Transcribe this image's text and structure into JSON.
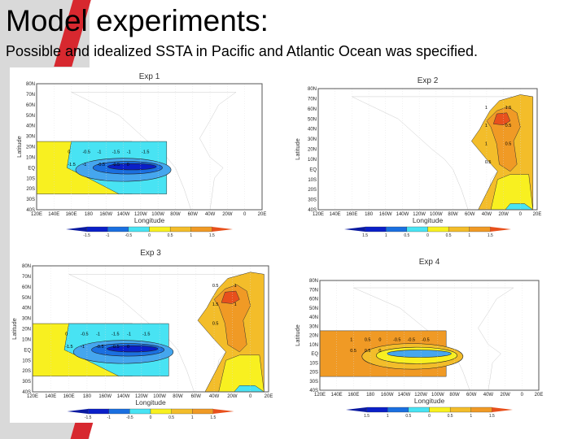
{
  "slide": {
    "title": "Model experiments:",
    "subtitle": "Possible and idealized SSTA in Pacific and Atlantic Ocean was specified."
  },
  "colors": {
    "accent_red": "#d7282f",
    "scale": [
      "#0a1fc8",
      "#1a6fe0",
      "#45a6ee",
      "#48e3f3",
      "#f8f020",
      "#f3bd2a",
      "#f09a25",
      "#e8501c"
    ]
  },
  "panels": [
    {
      "title": "Exp 1",
      "xlabel": "Longitude",
      "ylabel": "Latitude",
      "lon_ticks": [
        "120E",
        "140E",
        "160E",
        "180",
        "160W",
        "140W",
        "120W",
        "100W",
        "80W",
        "60W",
        "40W",
        "20W",
        "0",
        "20E"
      ],
      "lat_ticks": [
        "80N",
        "70N",
        "60N",
        "50N",
        "40N",
        "30N",
        "20N",
        "10N",
        "EQ",
        "10S",
        "20S",
        "30S",
        "40S"
      ],
      "colorbar_labels": [
        "-1.5",
        "-1",
        "-0.5",
        "0",
        "0.5",
        "1",
        "1.5"
      ],
      "contour_labels": [
        "0",
        "-0.5",
        "-1",
        "-1.5",
        "-1",
        "-1.5",
        "-1.5",
        "-1",
        "-0.5",
        "-0.5",
        "0"
      ],
      "regions": [
        "pacific-cold"
      ]
    },
    {
      "title": "Exp 2",
      "xlabel": "Longitude",
      "ylabel": "Latitude",
      "lon_ticks": [
        "120E",
        "140E",
        "160E",
        "180",
        "160W",
        "140W",
        "120W",
        "100W",
        "80W",
        "60W",
        "40W",
        "20W",
        "0",
        "20E"
      ],
      "lat_ticks": [
        "80N",
        "70N",
        "60N",
        "50N",
        "40N",
        "30N",
        "20N",
        "10N",
        "EQ",
        "10S",
        "20S",
        "30S",
        "40S"
      ],
      "colorbar_labels": [
        "1.5",
        "1",
        "0.5",
        "0",
        "0.5",
        "1",
        "1.5"
      ],
      "contour_labels": [
        "1",
        "1.5",
        "1",
        "0.5",
        "1",
        "0.5",
        "0.5"
      ],
      "regions": [
        "atlantic-warm"
      ]
    },
    {
      "title": "Exp 3",
      "xlabel": "Longitude",
      "ylabel": "Latitude",
      "lon_ticks": [
        "120E",
        "140E",
        "160E",
        "180",
        "160W",
        "140W",
        "120W",
        "100W",
        "80W",
        "60W",
        "40W",
        "20W",
        "0",
        "20E"
      ],
      "lat_ticks": [
        "80N",
        "70N",
        "60N",
        "50N",
        "40N",
        "30N",
        "20N",
        "10N",
        "EQ",
        "10S",
        "20S",
        "30S",
        "40S"
      ],
      "colorbar_labels": [
        "-1.5",
        "-1",
        "-0.5",
        "0",
        "0.5",
        "1",
        "1.5"
      ],
      "contour_labels": [
        "0",
        "-0.5",
        "-1",
        "-1.5",
        "-1",
        "-1.5",
        "-1.5",
        "-1",
        "-0.5",
        "-0.5",
        "0",
        "0.5",
        "1",
        "1.5",
        "1",
        "0.5"
      ],
      "regions": [
        "pacific-cold",
        "atlantic-warm"
      ]
    },
    {
      "title": "Exp 4",
      "xlabel": "Longitude",
      "ylabel": "Latitude",
      "lon_ticks": [
        "120E",
        "140E",
        "160E",
        "180",
        "160W",
        "140W",
        "120W",
        "100W",
        "80W",
        "60W",
        "40W",
        "20W",
        "0",
        "20E"
      ],
      "lat_ticks": [
        "80N",
        "70N",
        "60N",
        "50N",
        "40N",
        "30N",
        "20N",
        "10N",
        "EQ",
        "10S",
        "20S",
        "30S",
        "40S"
      ],
      "colorbar_labels": [
        "1.5",
        "1",
        "0.5",
        "0",
        "0.5",
        "1",
        "1.5"
      ],
      "contour_labels": [
        "1",
        "0.5",
        "0",
        "-0.5",
        "-0.5",
        "-0.5",
        "0.5",
        "0.5",
        "0"
      ],
      "regions": [
        "pacific-warm"
      ]
    }
  ]
}
